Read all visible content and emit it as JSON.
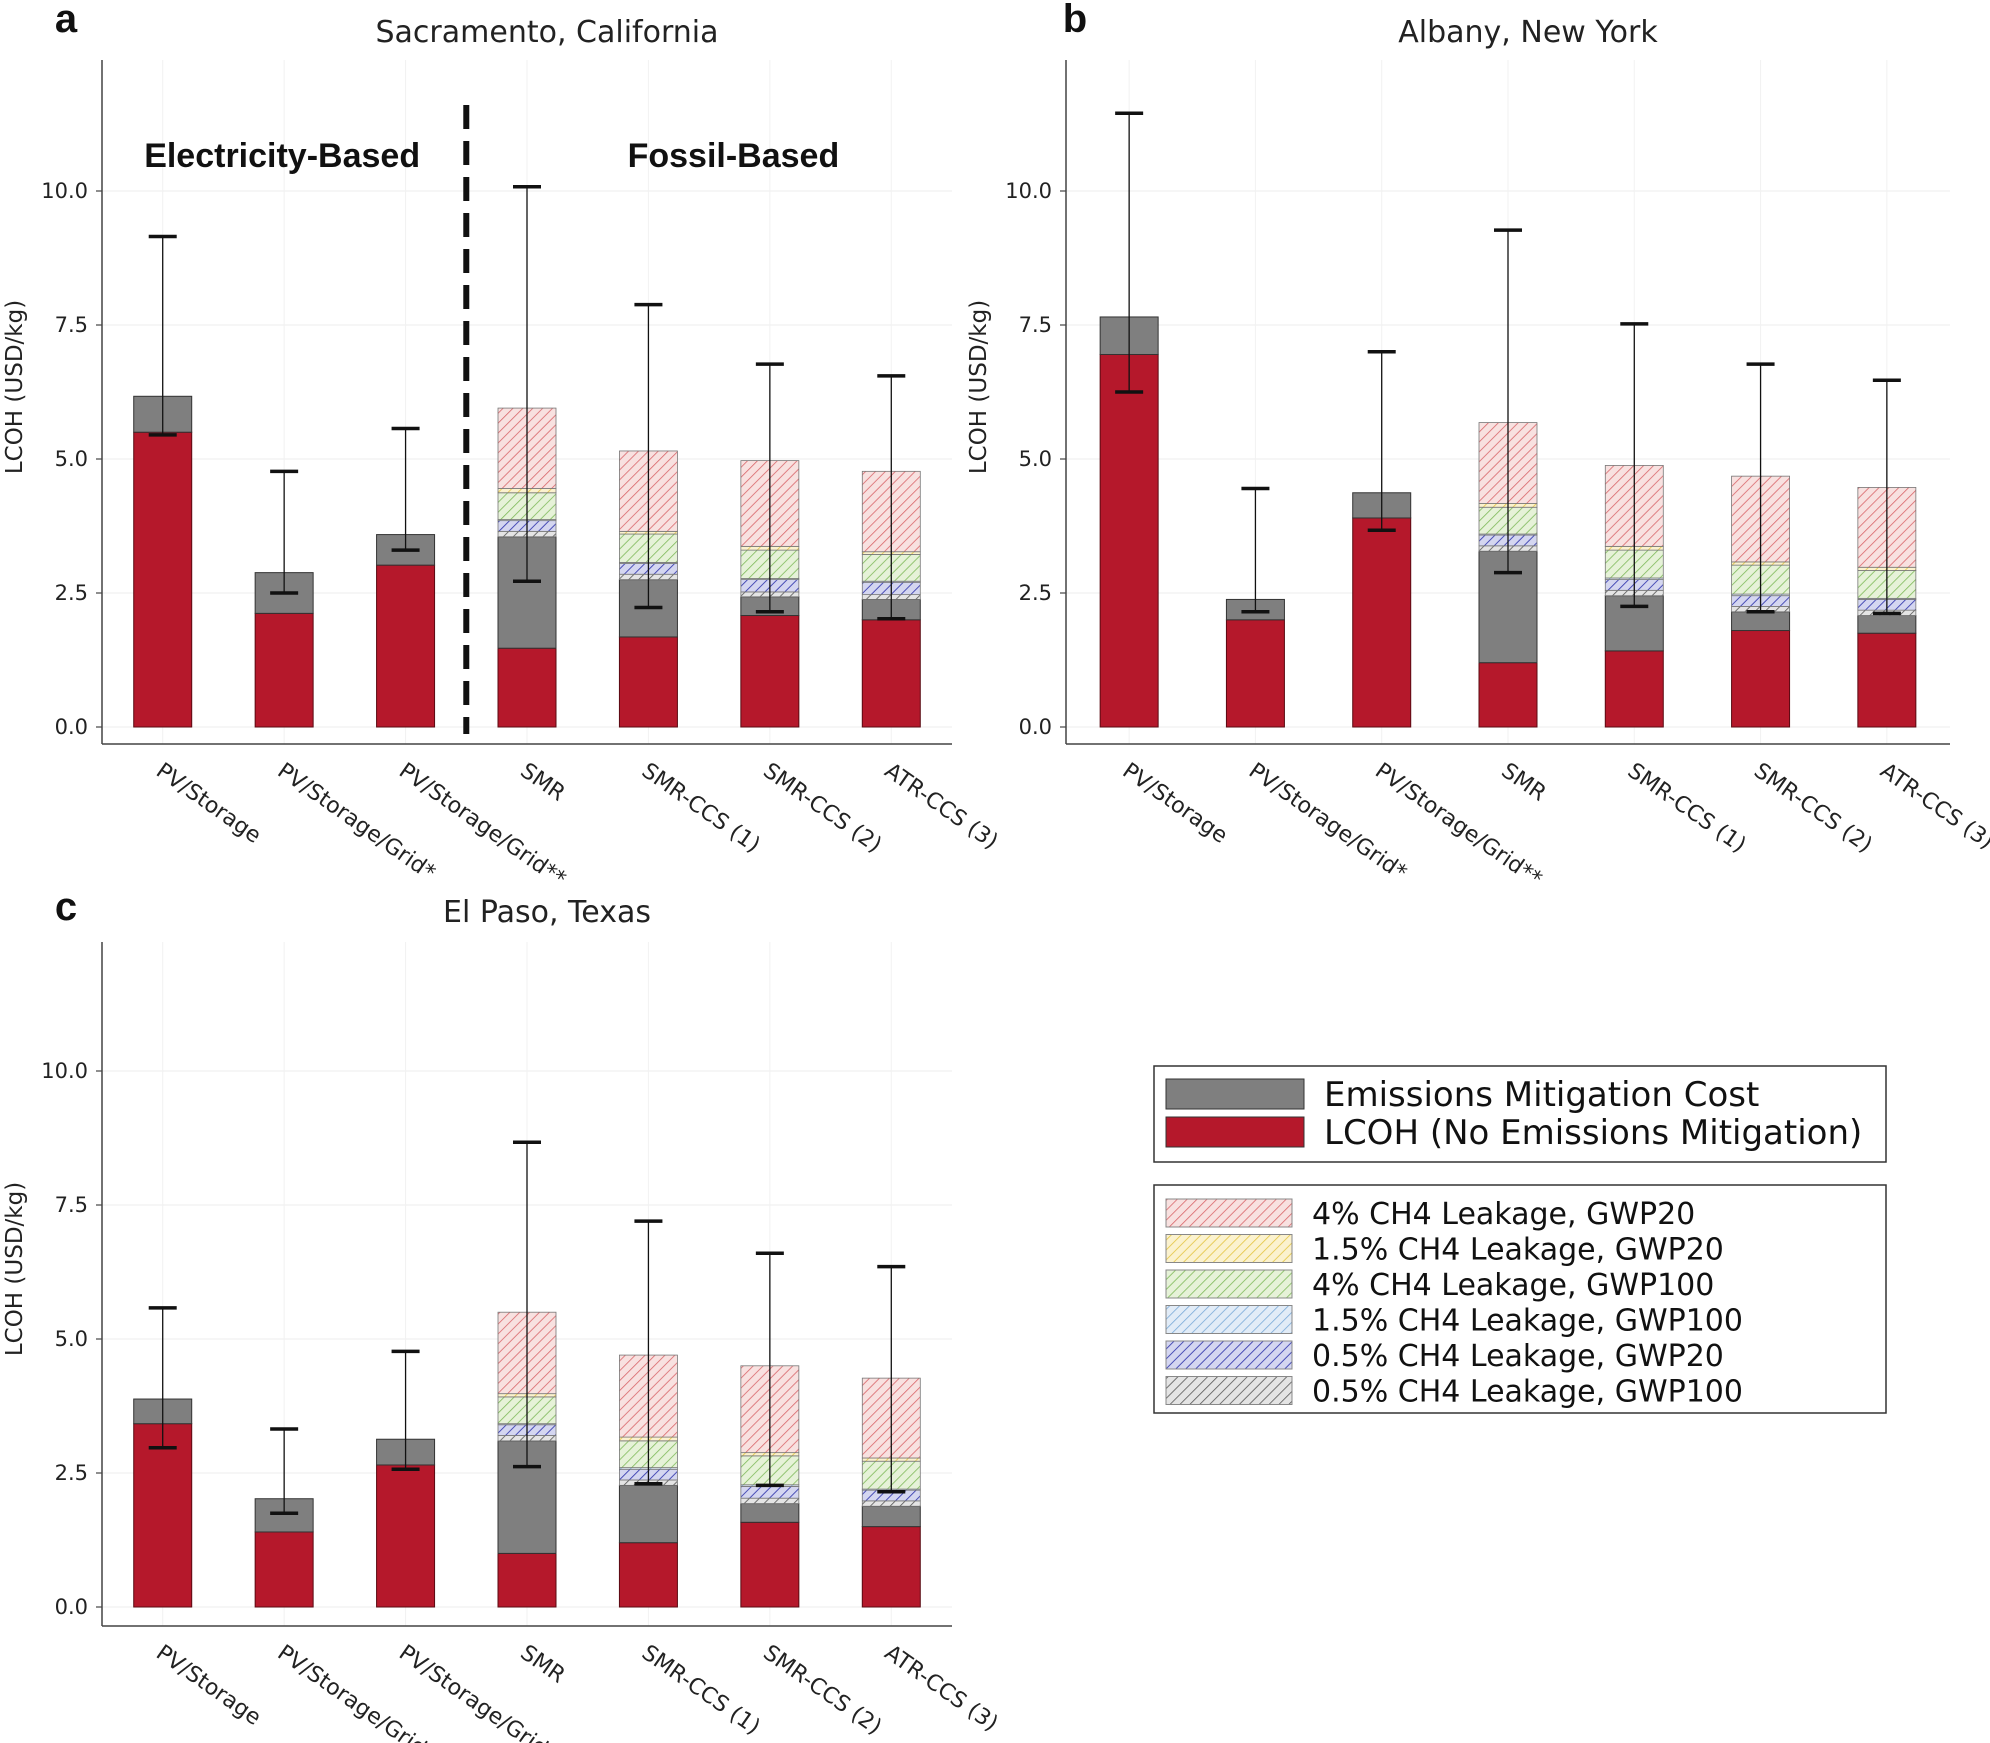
{
  "chart_data": [
    {
      "type": "bar",
      "panel": "a",
      "title": "Sacramento, California",
      "ylabel": "LCOH (USD/kg)",
      "ylim": [
        0,
        12.4
      ],
      "yticks": [
        "0.0",
        "2.5",
        "5.0",
        "7.5",
        "10.0"
      ],
      "group_labels": [
        "Electricity-Based",
        "Fossil-Based"
      ],
      "categories": [
        "PV/Storage",
        "PV/Storage/Grid*",
        "PV/Storage/Grid**",
        "SMR",
        "SMR-CCS (1)",
        "SMR-CCS (2)",
        "ATR-CCS (3)"
      ],
      "lcoh": [
        5.5,
        2.12,
        3.02,
        1.47,
        1.68,
        2.08,
        2.0
      ],
      "mitigation_top": [
        6.17,
        2.88,
        3.59,
        3.55,
        2.75,
        2.43,
        2.38
      ],
      "leak_05_gwp100": [
        null,
        null,
        null,
        3.65,
        2.85,
        2.52,
        2.47
      ],
      "leak_05_gwp20": [
        null,
        null,
        null,
        3.85,
        3.05,
        2.75,
        2.7
      ],
      "leak_15_gwp100": [
        null,
        null,
        null,
        3.87,
        3.07,
        2.77,
        2.72
      ],
      "leak_4_gwp100": [
        null,
        null,
        null,
        4.37,
        3.6,
        3.3,
        3.22
      ],
      "leak_15_gwp20": [
        null,
        null,
        null,
        4.45,
        3.65,
        3.37,
        3.27
      ],
      "leak_4_gwp20": [
        null,
        null,
        null,
        5.95,
        5.15,
        4.97,
        4.77
      ],
      "err_low": [
        5.45,
        2.5,
        3.3,
        2.72,
        2.23,
        2.15,
        2.02
      ],
      "err_high": [
        9.15,
        4.77,
        5.57,
        10.08,
        7.88,
        6.77,
        6.55
      ]
    },
    {
      "type": "bar",
      "panel": "b",
      "title": "Albany, New York",
      "ylabel": "LCOH (USD/kg)",
      "ylim": [
        0,
        12.4
      ],
      "yticks": [
        "0.0",
        "2.5",
        "5.0",
        "7.5",
        "10.0"
      ],
      "categories": [
        "PV/Storage",
        "PV/Storage/Grid*",
        "PV/Storage/Grid**",
        "SMR",
        "SMR-CCS (1)",
        "SMR-CCS (2)",
        "ATR-CCS (3)"
      ],
      "lcoh": [
        6.95,
        2.0,
        3.9,
        1.2,
        1.42,
        1.8,
        1.75
      ],
      "mitigation_top": [
        7.65,
        2.38,
        4.37,
        3.28,
        2.45,
        2.15,
        2.08
      ],
      "leak_05_gwp100": [
        null,
        null,
        null,
        3.38,
        2.55,
        2.25,
        2.18
      ],
      "leak_05_gwp20": [
        null,
        null,
        null,
        3.58,
        2.75,
        2.45,
        2.38
      ],
      "leak_15_gwp100": [
        null,
        null,
        null,
        3.6,
        2.78,
        2.48,
        2.4
      ],
      "leak_4_gwp100": [
        null,
        null,
        null,
        4.1,
        3.3,
        3.02,
        2.92
      ],
      "leak_15_gwp20": [
        null,
        null,
        null,
        4.17,
        3.37,
        3.08,
        2.98
      ],
      "leak_4_gwp20": [
        null,
        null,
        null,
        5.68,
        4.88,
        4.68,
        4.47
      ],
      "err_low": [
        6.25,
        2.15,
        3.67,
        2.88,
        2.25,
        2.15,
        2.12
      ],
      "err_high": [
        11.45,
        4.45,
        7.0,
        9.27,
        7.52,
        6.77,
        6.47
      ]
    },
    {
      "type": "bar",
      "panel": "c",
      "title": "El Paso, Texas",
      "ylabel": "LCOH (USD/kg)",
      "ylim": [
        0,
        12.4
      ],
      "yticks": [
        "0.0",
        "2.5",
        "5.0",
        "7.5",
        "10.0"
      ],
      "categories": [
        "PV/Storage",
        "PV/Storage/Grid*",
        "PV/Storage/Grid**",
        "SMR",
        "SMR-CCS (1)",
        "SMR-CCS (2)",
        "ATR-CCS (3)"
      ],
      "lcoh": [
        3.42,
        1.4,
        2.65,
        1.0,
        1.2,
        1.58,
        1.5
      ],
      "mitigation_top": [
        3.88,
        2.02,
        3.13,
        3.1,
        2.27,
        1.93,
        1.88
      ],
      "leak_05_gwp100": [
        null,
        null,
        null,
        3.2,
        2.37,
        2.03,
        1.98
      ],
      "leak_05_gwp20": [
        null,
        null,
        null,
        3.4,
        2.57,
        2.25,
        2.18
      ],
      "leak_15_gwp100": [
        null,
        null,
        null,
        3.42,
        2.6,
        2.28,
        2.2
      ],
      "leak_4_gwp100": [
        null,
        null,
        null,
        3.92,
        3.1,
        2.82,
        2.72
      ],
      "leak_15_gwp20": [
        null,
        null,
        null,
        3.98,
        3.17,
        2.88,
        2.78
      ],
      "leak_4_gwp20": [
        null,
        null,
        null,
        5.5,
        4.7,
        4.5,
        4.27
      ],
      "err_low": [
        2.97,
        1.75,
        2.57,
        2.62,
        2.3,
        2.27,
        2.15
      ],
      "err_high": [
        5.58,
        3.32,
        4.77,
        8.67,
        7.2,
        6.6,
        6.35
      ]
    }
  ],
  "legend_main": [
    {
      "label": "Emissions Mitigation Cost",
      "color": "#7f7f7f"
    },
    {
      "label": "LCOH (No Emissions Mitigation)",
      "color": "#b5182b"
    }
  ],
  "legend_leakage": [
    {
      "label": "4% CH4 Leakage, GWP20",
      "color": "#d9666a"
    },
    {
      "label": "1.5% CH4 Leakage, GWP20",
      "color": "#e3c440"
    },
    {
      "label": "4% CH4 Leakage, GWP100",
      "color": "#7fba5a"
    },
    {
      "label": "1.5% CH4 Leakage, GWP100",
      "color": "#7aaad8"
    },
    {
      "label": "0.5% CH4 Leakage, GWP20",
      "color": "#3a3fb0"
    },
    {
      "label": "0.5% CH4 Leakage, GWP100",
      "color": "#555555"
    }
  ],
  "colors": {
    "lcoh": "#b5182b",
    "mitigation": "#7f7f7f",
    "leak_4_gwp20_fill": "#f8e1e0",
    "leak_15_gwp20_fill": "#fbf2cf",
    "leak_4_gwp100_fill": "#e6f2d8",
    "leak_15_gwp100_fill": "#e2ecf7",
    "leak_05_gwp20_fill": "#d4d6f0",
    "leak_05_gwp100_fill": "#e4e4e4"
  }
}
